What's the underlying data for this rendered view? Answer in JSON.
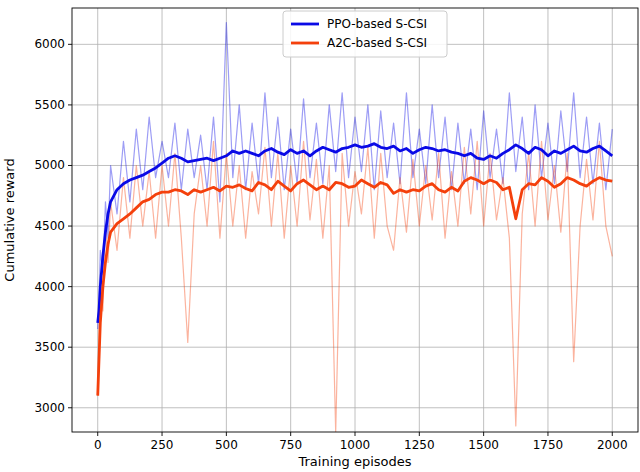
{
  "chart_data": {
    "type": "line",
    "x_label": "Training episodes",
    "y_label": "Cumulative reward",
    "xlim": [
      -100,
      2100
    ],
    "xticks": [
      0,
      250,
      500,
      750,
      1000,
      1250,
      1500,
      1750,
      2000
    ],
    "ylim": [
      2800,
      6300
    ],
    "yticks": [
      3000,
      3500,
      4000,
      4500,
      5000,
      5500,
      6000
    ],
    "grid": true,
    "legend": "upper center",
    "x": [
      0,
      5,
      10,
      20,
      30,
      40,
      50,
      75,
      100,
      125,
      150,
      175,
      200,
      225,
      250,
      275,
      300,
      325,
      350,
      375,
      400,
      425,
      450,
      475,
      500,
      525,
      550,
      575,
      600,
      625,
      650,
      675,
      700,
      725,
      750,
      775,
      800,
      825,
      850,
      875,
      900,
      925,
      950,
      975,
      1000,
      1025,
      1050,
      1075,
      1100,
      1125,
      1150,
      1175,
      1200,
      1225,
      1250,
      1275,
      1300,
      1325,
      1350,
      1375,
      1400,
      1425,
      1450,
      1475,
      1500,
      1525,
      1550,
      1575,
      1600,
      1625,
      1650,
      1675,
      1700,
      1725,
      1750,
      1775,
      1800,
      1825,
      1850,
      1875,
      1900,
      1925,
      1950,
      1975,
      2000
    ],
    "series": [
      {
        "name": "PPO-based S-CSI",
        "color": "#0a0ae6",
        "values": [
          3700,
          3800,
          4000,
          4250,
          4450,
          4600,
          4700,
          4800,
          4850,
          4880,
          4900,
          4920,
          4950,
          4980,
          5020,
          5060,
          5080,
          5060,
          5030,
          5040,
          5050,
          5060,
          5040,
          5060,
          5080,
          5120,
          5100,
          5120,
          5100,
          5080,
          5120,
          5140,
          5110,
          5090,
          5130,
          5100,
          5120,
          5080,
          5120,
          5150,
          5130,
          5110,
          5140,
          5150,
          5170,
          5150,
          5160,
          5180,
          5150,
          5140,
          5160,
          5120,
          5140,
          5100,
          5130,
          5150,
          5140,
          5120,
          5130,
          5110,
          5100,
          5080,
          5100,
          5060,
          5050,
          5080,
          5060,
          5100,
          5130,
          5170,
          5140,
          5100,
          5150,
          5130,
          5080,
          5120,
          5100,
          5130,
          5160,
          5120,
          5110,
          5140,
          5160,
          5120,
          5080
        ],
        "raw_values": [
          3650,
          3900,
          4300,
          4100,
          4700,
          4400,
          5000,
          4600,
          5200,
          4700,
          5300,
          4800,
          5400,
          4900,
          5200,
          4900,
          5350,
          4800,
          5300,
          4900,
          5250,
          4800,
          5400,
          4700,
          6180,
          4900,
          5500,
          4800,
          5350,
          4850,
          5600,
          4900,
          5400,
          4800,
          5300,
          4850,
          5550,
          4900,
          5350,
          4850,
          5500,
          4950,
          5600,
          4900,
          5400,
          4950,
          5500,
          4800,
          5450,
          4900,
          5350,
          4850,
          5600,
          4900,
          5300,
          4850,
          5500,
          4900,
          5400,
          4800,
          5350,
          4850,
          5300,
          4800,
          5450,
          4900,
          5300,
          4850,
          5600,
          4950,
          5400,
          4800,
          5500,
          4900,
          5350,
          4850,
          5450,
          4950,
          5600,
          4900,
          5400,
          4850,
          5350,
          4800,
          5300
        ]
      },
      {
        "name": "A2C-based S-CSI",
        "color": "#f4400c",
        "values": [
          3100,
          3400,
          3700,
          4000,
          4200,
          4350,
          4450,
          4520,
          4560,
          4600,
          4650,
          4700,
          4720,
          4760,
          4780,
          4780,
          4800,
          4790,
          4760,
          4800,
          4780,
          4800,
          4820,
          4790,
          4830,
          4820,
          4840,
          4810,
          4790,
          4860,
          4840,
          4800,
          4870,
          4830,
          4790,
          4850,
          4880,
          4840,
          4800,
          4830,
          4800,
          4860,
          4850,
          4820,
          4830,
          4880,
          4850,
          4820,
          4860,
          4840,
          4770,
          4800,
          4780,
          4800,
          4790,
          4830,
          4850,
          4800,
          4780,
          4820,
          4790,
          4870,
          4900,
          4880,
          4850,
          4880,
          4860,
          4800,
          4820,
          4560,
          4800,
          4850,
          4840,
          4900,
          4870,
          4820,
          4850,
          4900,
          4880,
          4850,
          4830,
          4870,
          4900,
          4880,
          4870
        ],
        "raw_values": [
          3100,
          3600,
          4000,
          3800,
          4500,
          4200,
          4700,
          4300,
          4900,
          4400,
          5000,
          4500,
          4950,
          4400,
          5000,
          4500,
          5100,
          4400,
          3540,
          4600,
          5000,
          4500,
          5200,
          4400,
          5100,
          4500,
          5000,
          4400,
          4950,
          4600,
          5150,
          4500,
          5100,
          4400,
          5000,
          4500,
          5200,
          4550,
          5050,
          4400,
          5000,
          2800,
          5100,
          4500,
          4950,
          4600,
          5150,
          4400,
          5100,
          4500,
          4300,
          4900,
          4450,
          5050,
          4500,
          5000,
          4550,
          5100,
          4400,
          4950,
          4500,
          5150,
          4600,
          5200,
          4500,
          5100,
          4550,
          4900,
          4400,
          2850,
          4600,
          5100,
          4500,
          5200,
          4550,
          5000,
          4450,
          5100,
          3380,
          4500,
          5050,
          4550,
          5200,
          4500,
          4250
        ]
      }
    ]
  }
}
